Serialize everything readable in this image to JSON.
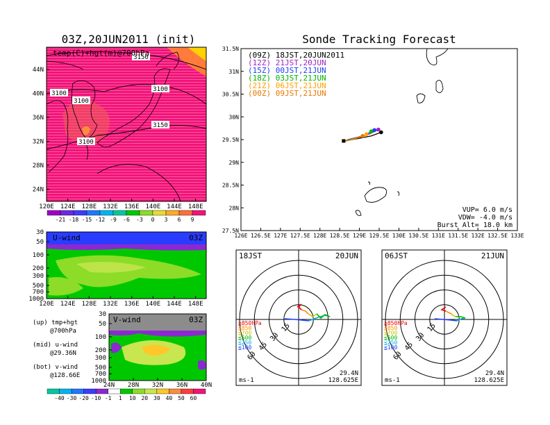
{
  "init_panel": {
    "title": "03Z,20JUN2011 (init)",
    "label": "temp(C)+hgt(m)@700hPa",
    "contour_labels": [
      "3150",
      "3100",
      "3100",
      "3100",
      "3100",
      "3150"
    ],
    "xticks": [
      "120E",
      "124E",
      "128E",
      "132E",
      "136E",
      "140E",
      "144E",
      "148E"
    ],
    "yticks": [
      "44N",
      "40N",
      "36N",
      "32N",
      "28N",
      "24N"
    ],
    "colorbar": [
      "-21",
      "-18",
      "-15",
      "-12",
      "-9",
      "-6",
      "-3",
      "0",
      "3",
      "6",
      "9"
    ]
  },
  "uwind_panel": {
    "label": "U-wind",
    "time": "03Z",
    "yticks": [
      "30",
      "50",
      "100",
      "200",
      "300",
      "500",
      "700",
      "1000"
    ],
    "xticks": [
      "120E",
      "124E",
      "128E",
      "132E",
      "136E",
      "140E",
      "144E",
      "148E"
    ]
  },
  "vwind_panel": {
    "label": "V-wind",
    "time": "03Z",
    "yticks": [
      "30",
      "50",
      "100",
      "200",
      "300",
      "500",
      "700",
      "1000"
    ],
    "xticks": [
      "24N",
      "28N",
      "32N",
      "36N",
      "40N"
    ]
  },
  "notes": {
    "up": "(up) tmp+hgt",
    "up2": "@700hPa",
    "mid": "(mid) u-wind",
    "mid2": "@29.36N",
    "bot": "(bot) v-wind",
    "bot2": "@128.66E"
  },
  "wind_colorbar": [
    "-40",
    "-30",
    "-20",
    "-10",
    "-1",
    "1",
    "10",
    "20",
    "30",
    "40",
    "50",
    "60"
  ],
  "track_panel": {
    "title": "Sonde Tracking Forecast",
    "xticks": [
      "126E",
      "126.5E",
      "127E",
      "127.5E",
      "128E",
      "128.5E",
      "129E",
      "129.5E",
      "130E",
      "130.5E",
      "131E",
      "131.5E",
      "132E",
      "132.5E",
      "133E"
    ],
    "yticks": [
      "31.5N",
      "31N",
      "30.5N",
      "30N",
      "29.5N",
      "29N",
      "28.5N",
      "28N",
      "27.5N"
    ],
    "legend": [
      {
        "label": "(09Z)  18JST,20JUN2011",
        "color": "#000000"
      },
      {
        "label": "(12Z)  21JST,20JUN",
        "color": "#a020c8"
      },
      {
        "label": "(15Z)  00JST,21JUN",
        "color": "#1e3cff"
      },
      {
        "label": "(18Z)  03JST,21JUN",
        "color": "#00b400"
      },
      {
        "label": "(21Z)  06JST,21JUN",
        "color": "#ffa000"
      },
      {
        "label": "(00Z)  09JST,21JUN",
        "color": "#e67800"
      }
    ],
    "vup": "VUP=  6.0  m/s",
    "vdw": "VDW=  -4.0  m/s",
    "burst": "Burst Alt=  18.0  km"
  },
  "chart_data": [
    {
      "type": "scatter",
      "title": "Sonde Tracking Forecast",
      "xlim": [
        126,
        133
      ],
      "ylim": [
        27.5,
        31.5
      ],
      "series": [
        {
          "name": "(09Z)  18JST,20JUN2011",
          "x": [
            129.55,
            129.3,
            129.0,
            128.75,
            128.6
          ],
          "y": [
            29.66,
            29.58,
            29.53,
            29.49,
            29.47
          ]
        },
        {
          "name": "(12Z)  21JST,20JUN",
          "x": [
            129.48,
            129.25,
            128.95,
            128.7
          ],
          "y": [
            29.72,
            29.62,
            29.55,
            29.5
          ]
        },
        {
          "name": "(15Z)  00JST,21JUN",
          "x": [
            129.38,
            129.15,
            128.9,
            128.65
          ],
          "y": [
            29.71,
            29.6,
            29.53,
            29.48
          ]
        },
        {
          "name": "(18Z)  03JST,21JUN",
          "x": [
            129.3,
            129.1,
            128.85,
            128.62
          ],
          "y": [
            29.68,
            29.58,
            29.52,
            29.47
          ]
        },
        {
          "name": "(21Z)  06JST,21JUN",
          "x": [
            129.18,
            129.0,
            128.8,
            128.6
          ],
          "y": [
            29.62,
            29.55,
            29.5,
            29.46
          ]
        },
        {
          "name": "(00Z)  09JST,21JUN",
          "x": [
            129.08,
            128.9,
            128.72,
            128.57
          ],
          "y": [
            29.58,
            29.52,
            29.48,
            29.45
          ]
        }
      ]
    }
  ],
  "hodo_left": {
    "time": "18JST",
    "date": "20JUN",
    "ring_labels": [
      "15",
      "30",
      "45",
      "60"
    ],
    "levels": [
      {
        "label": "≧850hPa",
        "color": "#e60000"
      },
      {
        "label": "≦850",
        "color": "#ff8c00"
      },
      {
        "label": "≦700",
        "color": "#c8c800"
      },
      {
        "label": "≦500",
        "color": "#00b400"
      },
      {
        "label": "≦250",
        "color": "#00b4e6"
      },
      {
        "label": "≦100",
        "color": "#1e3cff"
      }
    ],
    "units": "ms-1",
    "lat": "29.4N",
    "lon": "128.625E"
  },
  "hodo_right": {
    "time": "06JST",
    "date": "21JUN",
    "ring_labels": [
      "15",
      "30",
      "45",
      "60"
    ],
    "levels": [
      {
        "label": "≧850hPa",
        "color": "#e60000"
      },
      {
        "label": "≦850",
        "color": "#ff8c00"
      },
      {
        "label": "≦700",
        "color": "#c8c800"
      },
      {
        "label": "≦500",
        "color": "#00b400"
      },
      {
        "label": "≦250",
        "color": "#00b4e6"
      },
      {
        "label": "≦100",
        "color": "#1e3cff"
      }
    ],
    "units": "ms-1",
    "lat": "29.4N",
    "lon": "128.625E"
  }
}
